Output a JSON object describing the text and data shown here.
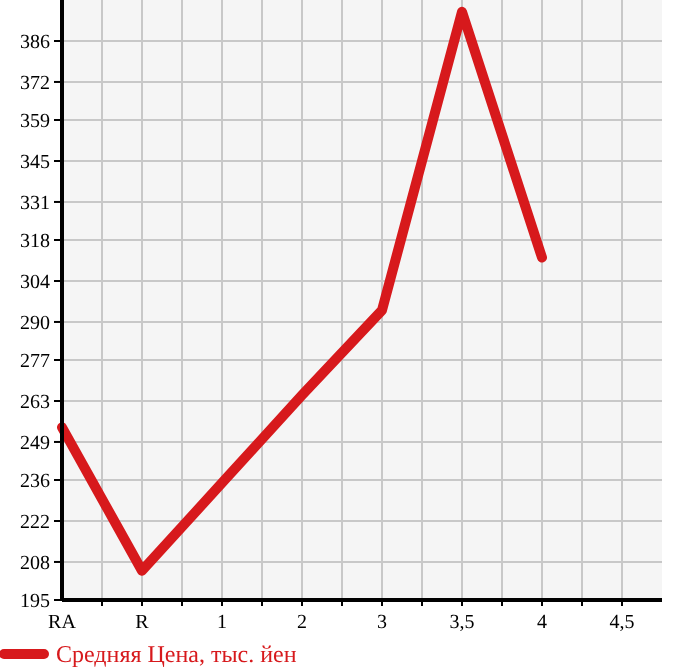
{
  "chart_data": {
    "type": "line",
    "categories": [
      "RA",
      "R",
      "1",
      "2",
      "3",
      "3,5",
      "4",
      "4,5"
    ],
    "series": [
      {
        "name": "Средняя Цена, тыс. йен",
        "color": "#d7191c",
        "values": [
          254,
          205,
          235,
          265,
          294,
          396,
          312,
          null
        ]
      }
    ],
    "ylim": [
      195,
      400
    ],
    "yticks": [
      195,
      208,
      222,
      236,
      249,
      263,
      277,
      290,
      304,
      318,
      331,
      345,
      359,
      372,
      386
    ],
    "grid": true,
    "legend": "bottom",
    "marker": "none",
    "line_style": "solid"
  }
}
